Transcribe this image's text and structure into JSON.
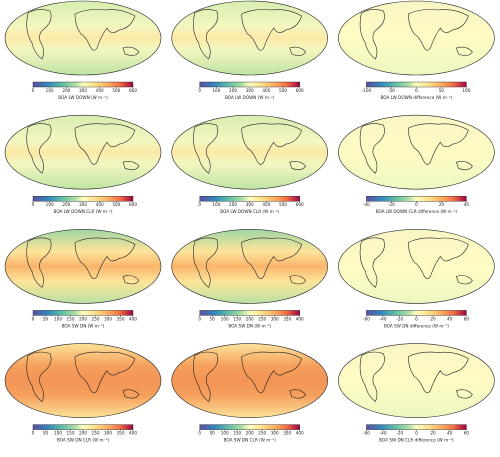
{
  "panels": [
    {
      "label": "BOA LW DOWN (W m⁻²)",
      "lim": [
        0,
        600
      ],
      "ticks": [
        0,
        100,
        200,
        300,
        400,
        500,
        600
      ]
    },
    {
      "label": "BOA LW DOWN (W m⁻²)",
      "lim": [
        0,
        600
      ],
      "ticks": [
        0,
        100,
        200,
        300,
        400,
        500,
        600
      ]
    },
    {
      "label": "BOA LW DOWN difference (W m⁻²)",
      "lim": [
        -100,
        100
      ],
      "ticks": [
        -100,
        -50,
        0,
        50,
        100
      ]
    },
    {
      "label": "BOA LW DOWN CLR (W m⁻²)",
      "lim": [
        0,
        600
      ],
      "ticks": [
        0,
        100,
        200,
        300,
        400,
        500,
        600
      ]
    },
    {
      "label": "BOA LW DOWN CLR (W m⁻²)",
      "lim": [
        0,
        600
      ],
      "ticks": [
        0,
        100,
        200,
        300,
        400,
        500,
        600
      ]
    },
    {
      "label": "BOA LW DOWN CLR difference (W m⁻²)",
      "lim": [
        -40,
        40
      ],
      "ticks": [
        -40,
        -20,
        0,
        20,
        40
      ]
    },
    {
      "label": "BOA SW DN (W m⁻²)",
      "lim": [
        0,
        400
      ],
      "ticks": [
        0,
        50,
        100,
        150,
        200,
        250,
        300,
        350,
        400
      ]
    },
    {
      "label": "BOA SW DN (W m⁻²)",
      "lim": [
        0,
        400
      ],
      "ticks": [
        0,
        50,
        100,
        150,
        200,
        250,
        300,
        350,
        400
      ]
    },
    {
      "label": "BOA SW DN difference (W m⁻²)",
      "lim": [
        -60,
        60
      ],
      "ticks": [
        -60,
        -40,
        -20,
        0,
        20,
        40,
        60
      ]
    },
    {
      "label": "BOA SW DN CLR (W m⁻²)",
      "lim": [
        0,
        400
      ],
      "ticks": [
        0,
        50,
        100,
        150,
        200,
        250,
        300,
        350,
        400
      ]
    },
    {
      "label": "BOA SW DN CLR (W m⁻²)",
      "lim": [
        0,
        400
      ],
      "ticks": [
        0,
        50,
        100,
        150,
        200,
        250,
        300,
        350,
        400
      ]
    },
    {
      "label": "BOA SW DN CLR difference (W m⁻²)",
      "lim": [
        -60,
        60
      ],
      "ticks": [
        -60,
        -40,
        -20,
        0,
        20,
        40,
        60
      ]
    }
  ]
}
